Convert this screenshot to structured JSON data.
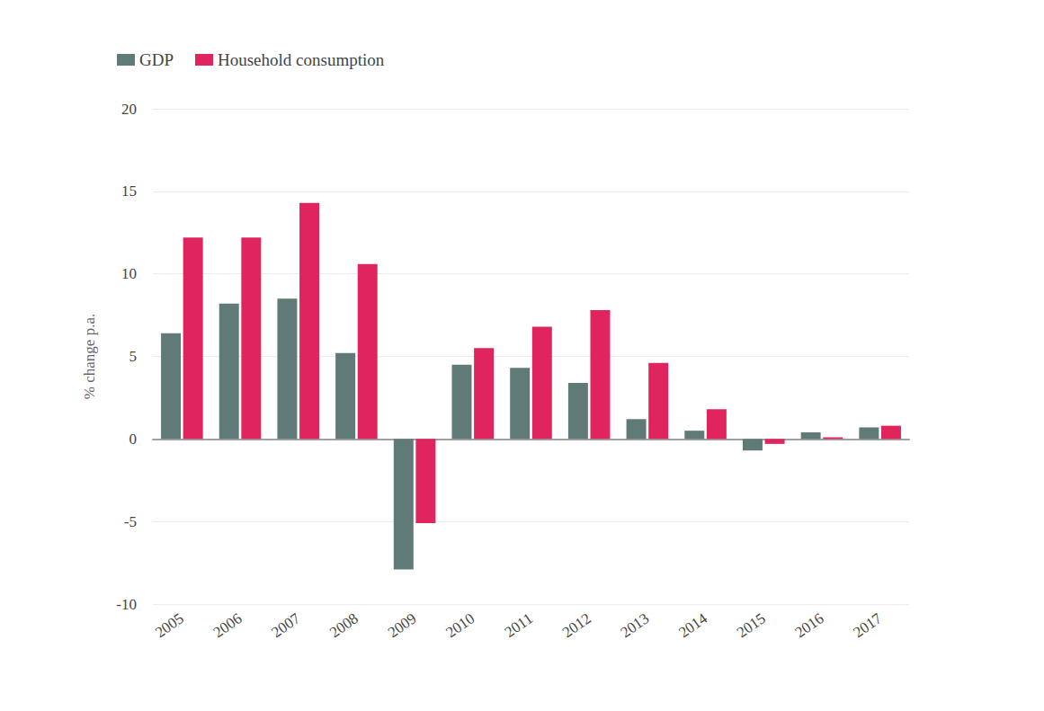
{
  "chart_data": {
    "type": "bar",
    "y_label": "% change p.a.",
    "categories": [
      "2005",
      "2006",
      "2007",
      "2008",
      "2009",
      "2010",
      "2011",
      "2012",
      "2013",
      "2014",
      "2015",
      "2016",
      "2017"
    ],
    "series": [
      {
        "name": "GDP",
        "color": "#5f7a77",
        "values": [
          6.4,
          8.2,
          8.5,
          5.2,
          -7.9,
          4.5,
          4.3,
          3.4,
          1.2,
          0.5,
          -0.7,
          0.4,
          0.7
        ]
      },
      {
        "name": "Household consumption",
        "color": "#e0245e",
        "values": [
          12.2,
          12.2,
          14.3,
          10.6,
          -5.1,
          5.5,
          6.8,
          7.8,
          4.6,
          1.8,
          -0.3,
          0.1,
          0.8
        ]
      }
    ],
    "ylim": [
      -10,
      20
    ],
    "yticks": [
      -10,
      -5,
      0,
      5,
      10,
      15,
      20
    ],
    "grid": true,
    "legend": "top-left"
  }
}
